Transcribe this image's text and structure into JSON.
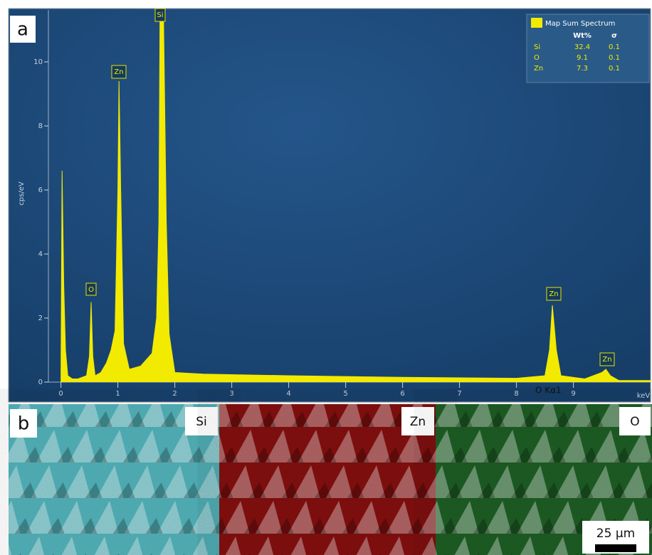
{
  "chart_data": {
    "type": "area",
    "panel_label": "a",
    "ylabel": "cps/eV",
    "xlabel": "keV",
    "x": [
      0,
      0.02,
      0.05,
      0.08,
      0.12,
      0.2,
      0.3,
      0.45,
      0.5,
      0.53,
      0.56,
      0.6,
      0.7,
      0.8,
      0.88,
      0.95,
      1.0,
      1.02,
      1.05,
      1.1,
      1.2,
      1.4,
      1.6,
      1.68,
      1.72,
      1.74,
      1.8,
      1.85,
      1.9,
      2.0,
      2.5,
      4,
      6,
      8,
      8.5,
      8.58,
      8.63,
      8.7,
      8.78,
      9.2,
      9.5,
      9.57,
      9.65,
      9.8,
      10.35
    ],
    "series": [
      {
        "name": "Map Sum Spectrum",
        "color": "#f2ea00",
        "values": [
          0,
          6.6,
          3,
          1,
          0.2,
          0.1,
          0.1,
          0.2,
          0.8,
          2.5,
          0.8,
          0.2,
          0.3,
          0.6,
          1.0,
          1.6,
          6,
          9.4,
          6,
          1.2,
          0.4,
          0.5,
          0.9,
          2,
          5,
          11.6,
          11.6,
          5,
          1.5,
          0.3,
          0.25,
          0.2,
          0.15,
          0.12,
          0.2,
          1,
          2.4,
          1,
          0.2,
          0.1,
          0.3,
          0.4,
          0.2,
          0.05,
          0.05
        ]
      }
    ],
    "xlim": [
      -0.22,
      10.35
    ],
    "ylim": [
      0,
      11.65
    ],
    "xticks": [
      0,
      1,
      2,
      3,
      4,
      5,
      6,
      7,
      8,
      9
    ],
    "yticks": [
      0,
      2,
      4,
      6,
      8,
      10
    ],
    "annotations": [
      "Si",
      "Zn",
      "O",
      "Zn",
      "Zn",
      "O Kα1"
    ],
    "legend_table": {
      "columns": [
        "Wt%",
        "σ"
      ],
      "rows": [
        [
          "Si",
          32.4,
          0.1
        ],
        [
          "O",
          9.1,
          0.1
        ],
        [
          "Zn",
          7.3,
          0.1
        ]
      ]
    }
  },
  "maps": {
    "panel_label": "b",
    "panels": [
      {
        "label": "Si",
        "color": "#5fd0d8"
      },
      {
        "label": "Zn",
        "color": "#d81818"
      },
      {
        "label": "O",
        "color": "#2e9a3a"
      }
    ],
    "scale_bar": "25 µm"
  }
}
